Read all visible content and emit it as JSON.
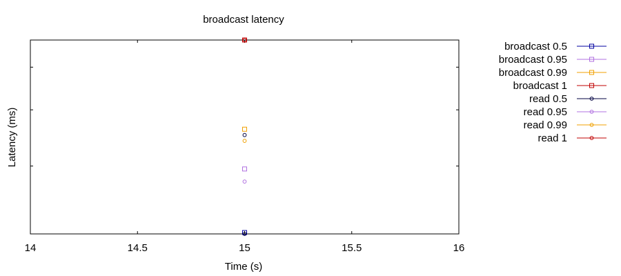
{
  "chart_data": {
    "type": "scatter",
    "title": "broadcast latency",
    "xlabel": "Time (s)",
    "ylabel": "Latency (ms)",
    "xlim": [
      14,
      16
    ],
    "ylim": [
      0,
      1
    ],
    "x_ticks": [
      "14",
      "14.5",
      "15",
      "15.5",
      "16"
    ],
    "x_tick_values": [
      14,
      14.5,
      15,
      15.5,
      16
    ],
    "y_ticks_unlabeled": [
      0.35,
      0.64,
      0.86
    ],
    "grid": false,
    "legend_position": "right",
    "series": [
      {
        "name": "broadcast 0.5",
        "color": "#0000a0",
        "marker": "square",
        "points": [
          [
            15,
            0.007
          ]
        ]
      },
      {
        "name": "broadcast 0.95",
        "color": "#b070e0",
        "marker": "square",
        "points": [
          [
            15,
            0.335
          ]
        ]
      },
      {
        "name": "broadcast 0.99",
        "color": "#f0a000",
        "marker": "square",
        "points": [
          [
            15,
            0.54
          ]
        ]
      },
      {
        "name": "broadcast 1",
        "color": "#c00000",
        "marker": "square",
        "points": [
          [
            15,
            1.0
          ]
        ]
      },
      {
        "name": "read 0.5",
        "color": "#000040",
        "marker": "circle",
        "points": [
          [
            15,
            0.0
          ],
          [
            15,
            0.51
          ]
        ]
      },
      {
        "name": "read 0.95",
        "color": "#b070e0",
        "marker": "circle",
        "points": [
          [
            15,
            0.27
          ]
        ]
      },
      {
        "name": "read 0.99",
        "color": "#f0a000",
        "marker": "circle",
        "points": [
          [
            15,
            0.48
          ]
        ]
      },
      {
        "name": "read 1",
        "color": "#c00000",
        "marker": "circle",
        "points": [
          [
            15,
            1.0
          ]
        ]
      }
    ]
  }
}
